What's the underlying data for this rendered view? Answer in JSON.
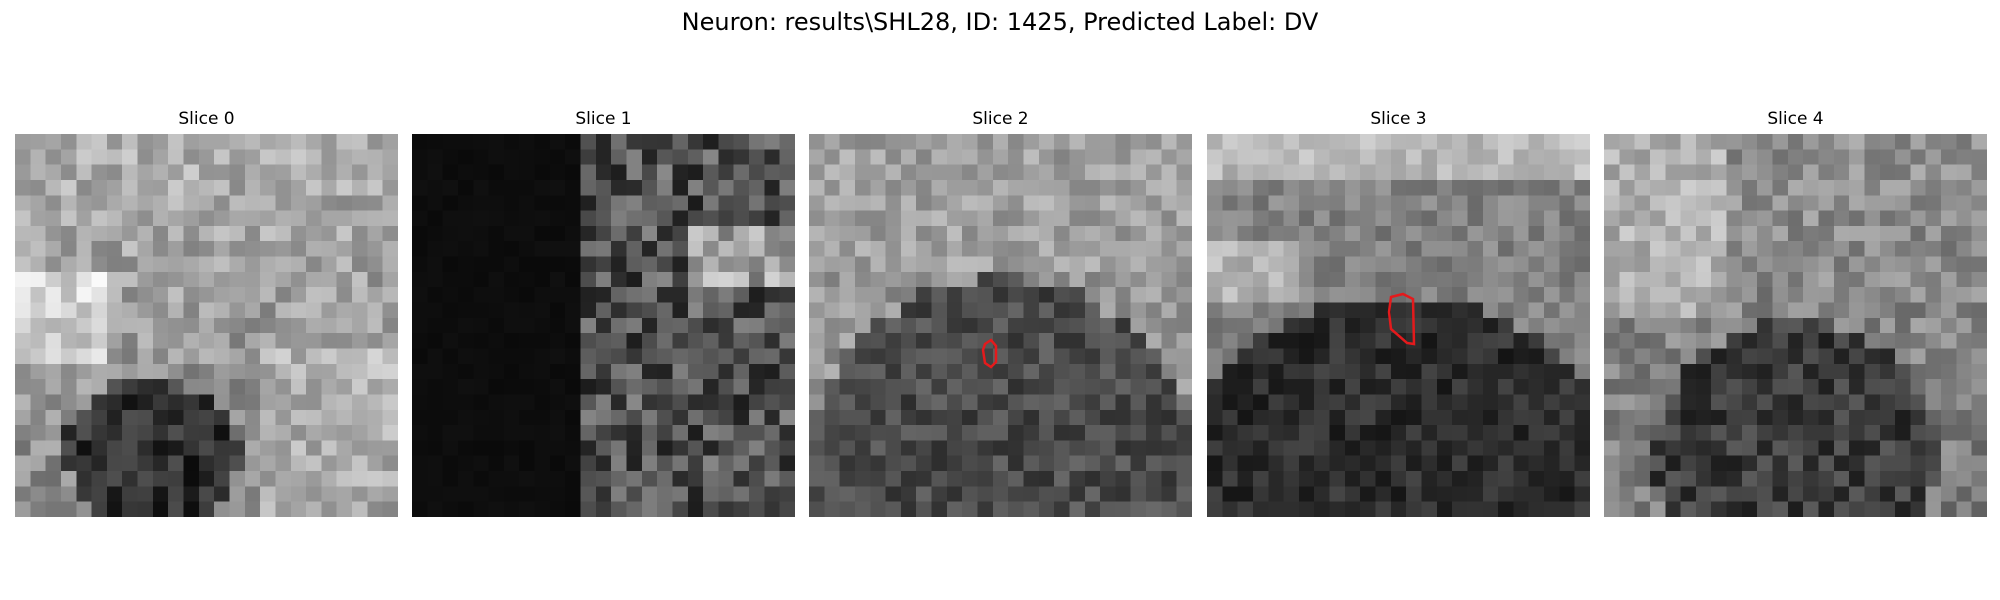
{
  "figure": {
    "suptitle": "Neuron: results\\SHL28, ID: 1425, Predicted Label: DV"
  },
  "panels": [
    {
      "title": "Slice 0",
      "roi": false
    },
    {
      "title": "Slice 1",
      "roi": false
    },
    {
      "title": "Slice 2",
      "roi": true
    },
    {
      "title": "Slice 3",
      "roi": true
    },
    {
      "title": "Slice 4",
      "roi": false
    }
  ],
  "colors": {
    "roi_outline": "#e41a1c",
    "background": "#ffffff"
  },
  "image": {
    "colormap": "grayscale"
  }
}
